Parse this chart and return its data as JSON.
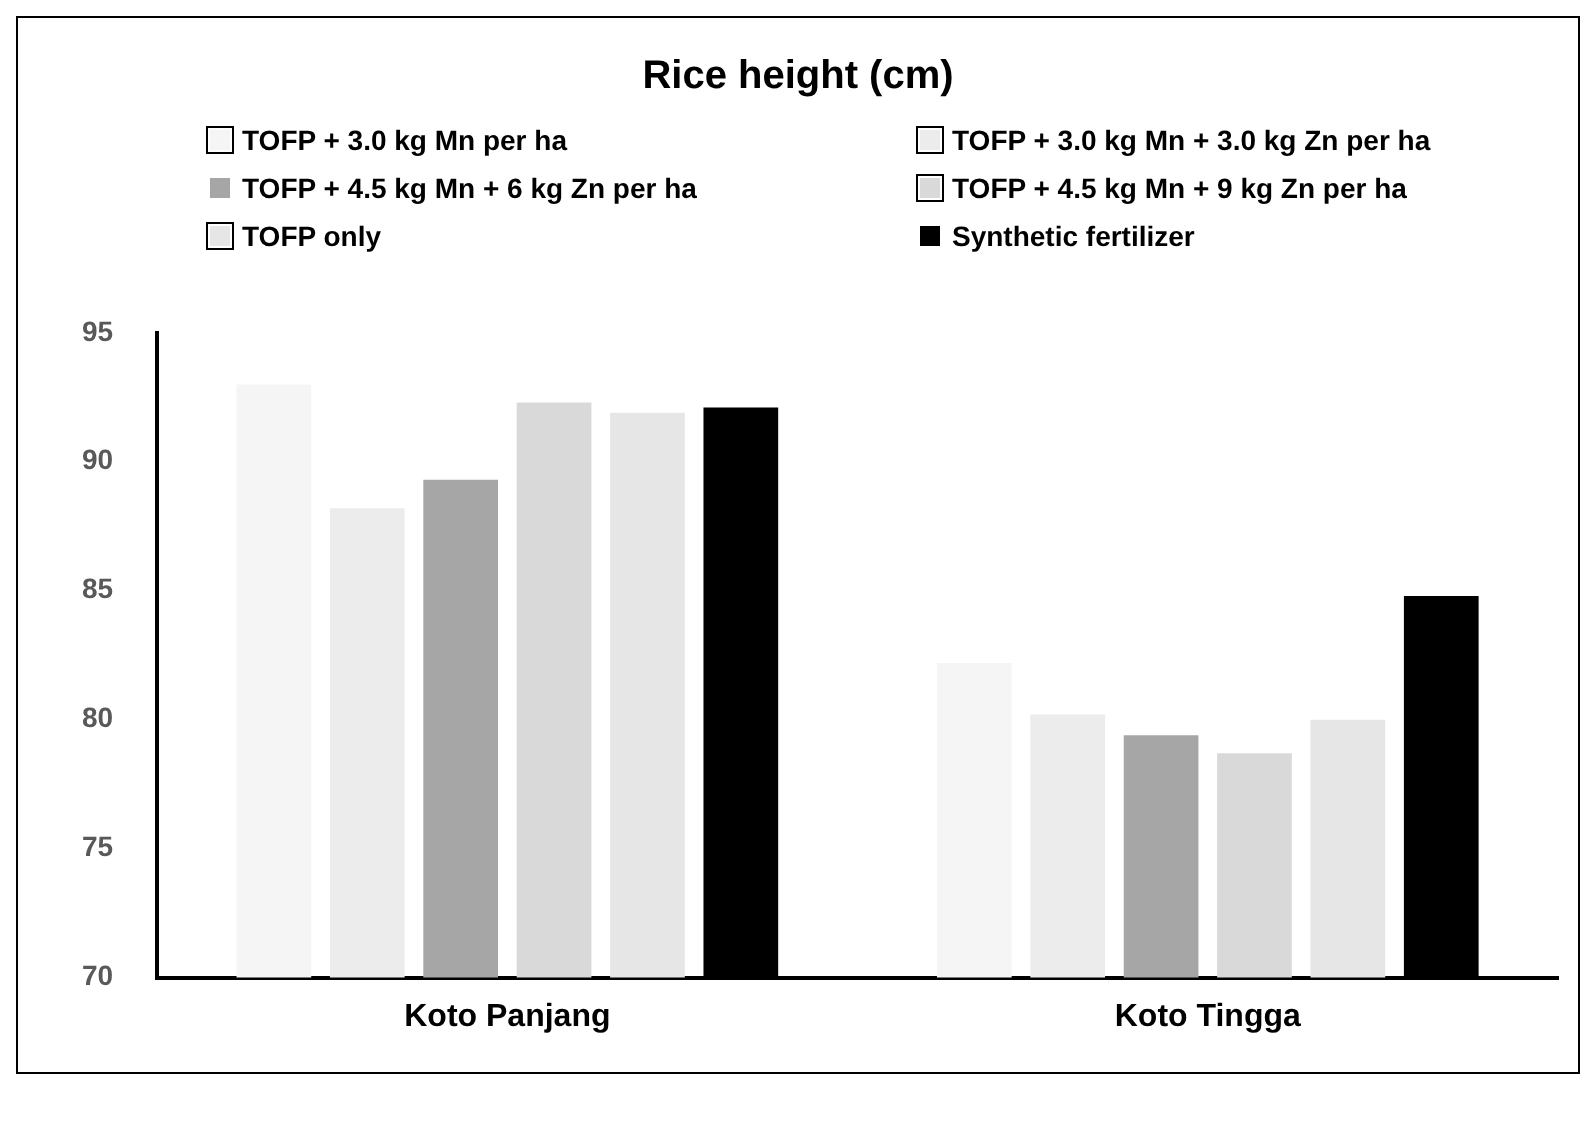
{
  "chart_data": {
    "type": "bar",
    "title": "Rice height (cm)",
    "categories": [
      "Koto Panjang",
      "Koto Tingga"
    ],
    "series": [
      {
        "name": "TOFP + 3.0 kg Mn per ha",
        "color": "#f5f5f5",
        "values": [
          93.0,
          82.2
        ]
      },
      {
        "name": "TOFP + 3.0 kg Mn + 3.0 kg Zn per ha",
        "color": "#ececec",
        "values": [
          88.2,
          80.2
        ]
      },
      {
        "name": "TOFP + 4.5 kg Mn + 6 kg Zn per ha",
        "color": "#a6a6a6",
        "values": [
          89.3,
          79.4
        ]
      },
      {
        "name": "TOFP + 4.5 kg Mn + 9 kg Zn per ha",
        "color": "#d9d9d9",
        "values": [
          92.3,
          78.7
        ]
      },
      {
        "name": "TOFP only",
        "color": "#e6e6e6",
        "values": [
          91.9,
          80.0
        ]
      },
      {
        "name": "Synthetic fertilizer",
        "color": "#000000",
        "values": [
          92.1,
          84.8
        ]
      }
    ],
    "ylim": [
      70,
      95
    ],
    "yticks": [
      70,
      75,
      80,
      85,
      90,
      95
    ],
    "grid": false,
    "legend": "top"
  }
}
